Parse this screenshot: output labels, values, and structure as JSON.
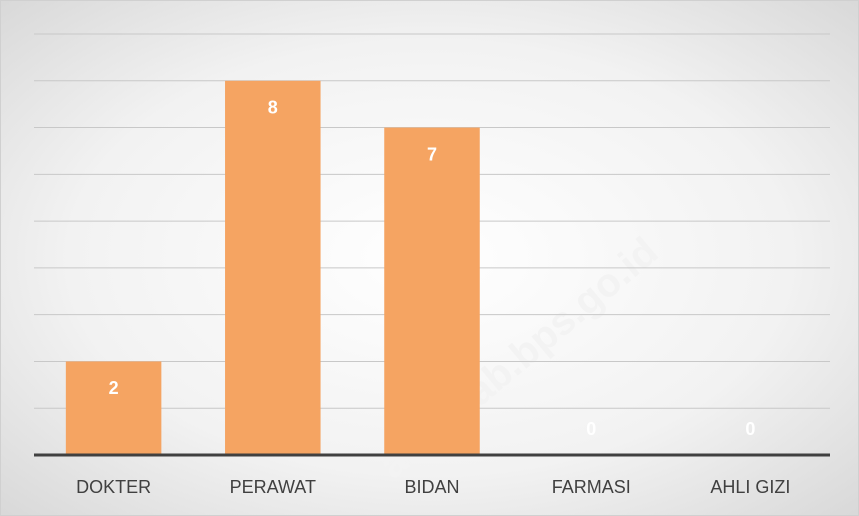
{
  "chart_data": {
    "type": "bar",
    "categories": [
      "DOKTER",
      "PERAWAT",
      "BIDAN",
      "FARMASI",
      "AHLI GIZI"
    ],
    "values": [
      2,
      8,
      7,
      0,
      0
    ],
    "color": "#f5a462",
    "ylim": [
      0,
      9
    ],
    "yticks": [
      0,
      1,
      2,
      3,
      4,
      5,
      6,
      7,
      8,
      9
    ],
    "grid": true,
    "watermark": "aukekab.bps.go.id"
  }
}
